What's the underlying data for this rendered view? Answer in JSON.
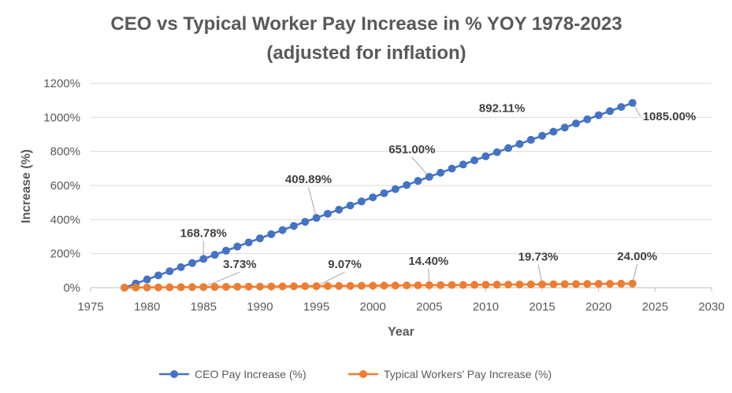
{
  "chart_data": {
    "type": "scatter",
    "title_line1": "CEO vs Typical Worker Pay Increase in % YOY 1978-2023",
    "title_line2": "(adjusted for inflation)",
    "xlabel": "Year",
    "ylabel": "Increase (%)",
    "xlim": [
      1975,
      2030
    ],
    "ylim": [
      0,
      1200
    ],
    "x_ticks": [
      "1975",
      "1980",
      "1985",
      "1990",
      "1995",
      "2000",
      "2005",
      "2010",
      "2015",
      "2020",
      "2025",
      "2030"
    ],
    "y_ticks": [
      "0%",
      "200%",
      "400%",
      "600%",
      "800%",
      "1000%",
      "1200%"
    ],
    "x": [
      1978,
      1979,
      1980,
      1981,
      1982,
      1983,
      1984,
      1985,
      1986,
      1987,
      1988,
      1989,
      1990,
      1991,
      1992,
      1993,
      1994,
      1995,
      1996,
      1997,
      1998,
      1999,
      2000,
      2001,
      2002,
      2003,
      2004,
      2005,
      2006,
      2007,
      2008,
      2009,
      2010,
      2011,
      2012,
      2013,
      2014,
      2015,
      2016,
      2017,
      2018,
      2019,
      2020,
      2021,
      2022,
      2023
    ],
    "series": [
      {
        "name": "CEO Pay Increase (%)",
        "color": "#4472C4",
        "values": [
          0,
          24.11,
          48.22,
          72.33,
          96.44,
          120.55,
          144.67,
          168.78,
          193.0,
          217.23,
          241.45,
          265.67,
          289.89,
          314.11,
          338.33,
          362.56,
          386.78,
          409.89,
          434.0,
          458.11,
          482.22,
          506.33,
          530.44,
          554.56,
          578.67,
          602.78,
          626.89,
          651.0,
          675.11,
          699.22,
          723.33,
          747.44,
          771.56,
          795.67,
          819.78,
          843.89,
          868.0,
          892.11,
          916.22,
          940.33,
          964.44,
          988.56,
          1012.67,
          1036.78,
          1060.89,
          1085.0
        ]
      },
      {
        "name": "Typical Workers’ Pay Increase (%)",
        "color": "#ED7D31",
        "values": [
          0,
          0.53,
          1.07,
          1.6,
          2.13,
          2.66,
          3.2,
          3.73,
          4.26,
          4.8,
          5.33,
          5.87,
          6.4,
          6.93,
          7.47,
          8.0,
          8.54,
          9.07,
          9.6,
          10.13,
          10.67,
          11.2,
          11.73,
          12.27,
          12.8,
          13.33,
          13.87,
          14.4,
          14.93,
          15.47,
          16.0,
          16.53,
          17.07,
          17.6,
          18.13,
          18.67,
          19.2,
          19.73,
          20.26,
          20.8,
          21.33,
          21.86,
          22.4,
          22.93,
          23.47,
          24.0
        ]
      }
    ],
    "annotations": [
      {
        "series": 0,
        "x": 1985,
        "text": "168.78%"
      },
      {
        "series": 0,
        "x": 1995,
        "text": "409.89%"
      },
      {
        "series": 0,
        "x": 2005,
        "text": "651.00%"
      },
      {
        "series": 0,
        "x": 2015,
        "text": "892.11%"
      },
      {
        "series": 0,
        "x": 2023,
        "text": "1085.00%"
      },
      {
        "series": 1,
        "x": 1985,
        "text": "3.73%"
      },
      {
        "series": 1,
        "x": 1995,
        "text": "9.07%"
      },
      {
        "series": 1,
        "x": 2005,
        "text": "14.40%"
      },
      {
        "series": 1,
        "x": 2015,
        "text": "19.73%"
      },
      {
        "series": 1,
        "x": 2023,
        "text": "24.00%"
      }
    ],
    "grid": "horizontal",
    "legend_position": "bottom"
  }
}
